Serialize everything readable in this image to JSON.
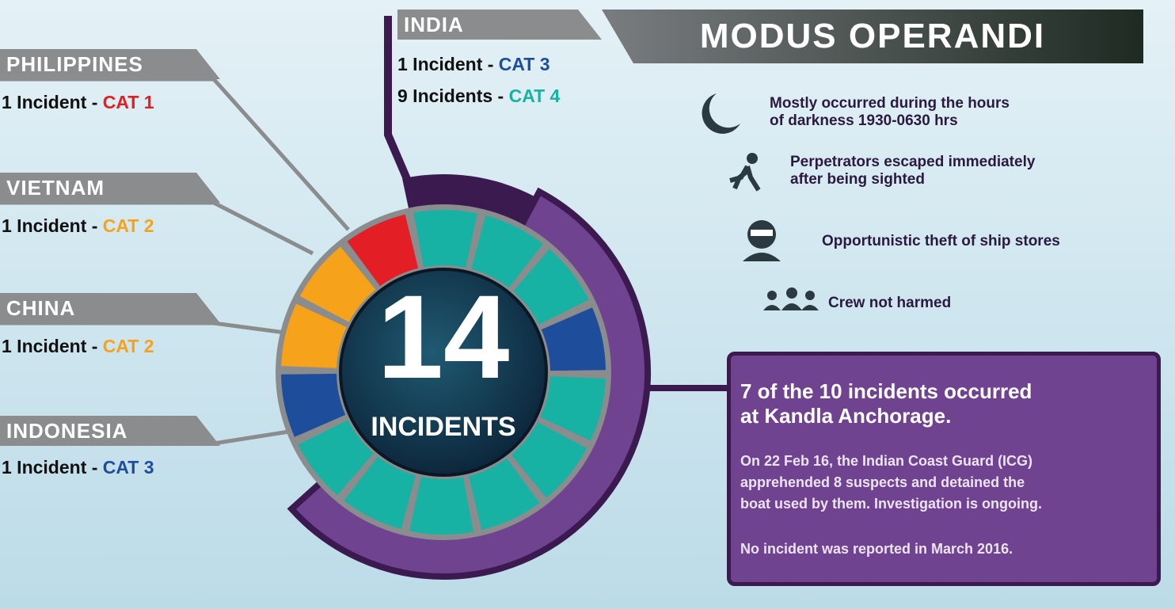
{
  "center": {
    "number": "14",
    "label": "INCIDENTS"
  },
  "countries": [
    {
      "name": "PHILIPPINES",
      "lines": [
        {
          "count": "1 Incident - ",
          "cat": "CAT 1"
        }
      ]
    },
    {
      "name": "VIETNAM",
      "lines": [
        {
          "count": "1 Incident - ",
          "cat": "CAT 2"
        }
      ]
    },
    {
      "name": "CHINA",
      "lines": [
        {
          "count": "1 Incident - ",
          "cat": "CAT 2"
        }
      ]
    },
    {
      "name": "INDONESIA",
      "lines": [
        {
          "count": "1 Incident - ",
          "cat": "CAT 3"
        }
      ]
    },
    {
      "name": "INDIA",
      "lines": [
        {
          "count": "1 Incident - ",
          "cat": "CAT 3"
        },
        {
          "count": "9 Incidents - ",
          "cat": "CAT 4"
        }
      ]
    }
  ],
  "modus_operandi": {
    "title": "MODUS OPERANDI",
    "items": [
      [
        "Mostly occurred during the hours",
        "of darkness 1930-0630 hrs"
      ],
      [
        "Perpetrators escaped immediately",
        "after being sighted"
      ],
      [
        "Opportunistic theft of ship stores"
      ],
      [
        "Crew not harmed"
      ]
    ]
  },
  "note": {
    "headline": [
      "7 of the 10 incidents occurred",
      "at Kandla Anchorage."
    ],
    "paragraphs": [
      [
        "On 22 Feb 16, the Indian Coast Guard (ICG)",
        "apprehended 8 suspects and detained the",
        "boat used by them. Investigation is ongoing."
      ],
      [
        "No incident was reported in March 2016."
      ]
    ]
  }
}
